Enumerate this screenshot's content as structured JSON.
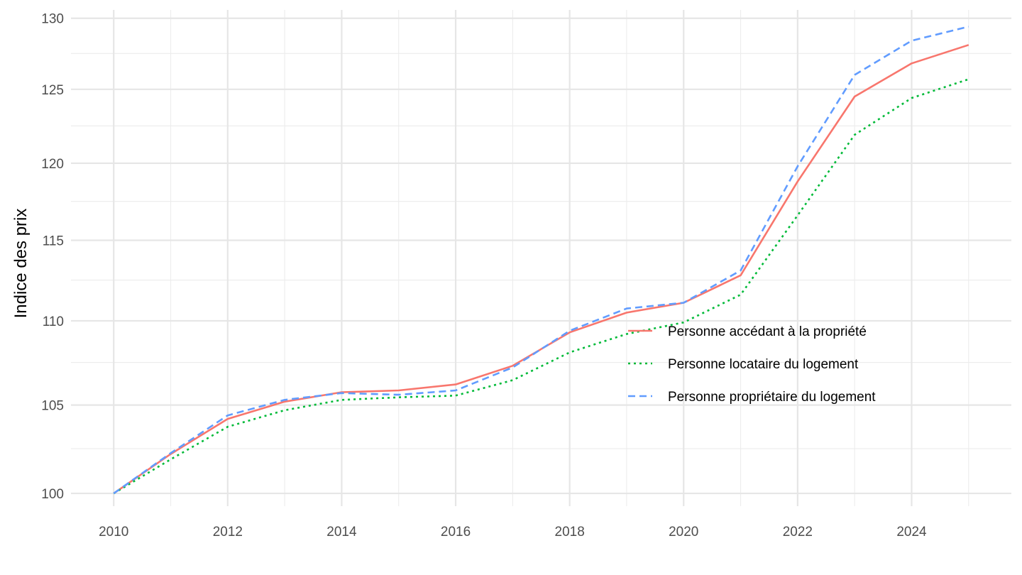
{
  "chart_data": {
    "type": "line",
    "title": "",
    "xlabel": "",
    "ylabel": "Indice des prix",
    "x": [
      2010,
      2011,
      2012,
      2013,
      2014,
      2015,
      2016,
      2017,
      2018,
      2019,
      2020,
      2021,
      2022,
      2023,
      2024,
      2025
    ],
    "xticks": [
      "2010",
      "2012",
      "2014",
      "2016",
      "2018",
      "2020",
      "2022",
      "2024"
    ],
    "xlim": [
      2009.25,
      2025.75
    ],
    "yticks": [
      "100",
      "105",
      "110",
      "115",
      "120",
      "125",
      "130"
    ],
    "y_scale": "log",
    "ylim": [
      99.3,
      130.6
    ],
    "grid": true,
    "legend_position": "inside, lower-right",
    "series": [
      {
        "name": "Personne accédant à la propriété",
        "color": "#F8766D",
        "dash": "solid",
        "values": [
          100,
          102.2,
          104.2,
          105.2,
          105.75,
          105.85,
          106.2,
          107.3,
          109.3,
          110.5,
          111.1,
          112.8,
          118.8,
          124.5,
          126.8,
          128.1
        ]
      },
      {
        "name": "Personne locataire du logement",
        "color": "#00BA38",
        "dash": "dotted",
        "values": [
          100,
          101.9,
          103.75,
          104.7,
          105.3,
          105.45,
          105.55,
          106.45,
          108.1,
          109.2,
          109.9,
          111.6,
          116.6,
          121.9,
          124.4,
          125.7
        ]
      },
      {
        "name": "Personne propriétaire du logement",
        "color": "#619CFF",
        "dash": "dashed",
        "values": [
          100,
          102.25,
          104.4,
          105.3,
          105.7,
          105.6,
          105.85,
          107.2,
          109.4,
          110.75,
          111.1,
          113.1,
          119.8,
          126.0,
          128.4,
          129.4
        ]
      }
    ]
  }
}
